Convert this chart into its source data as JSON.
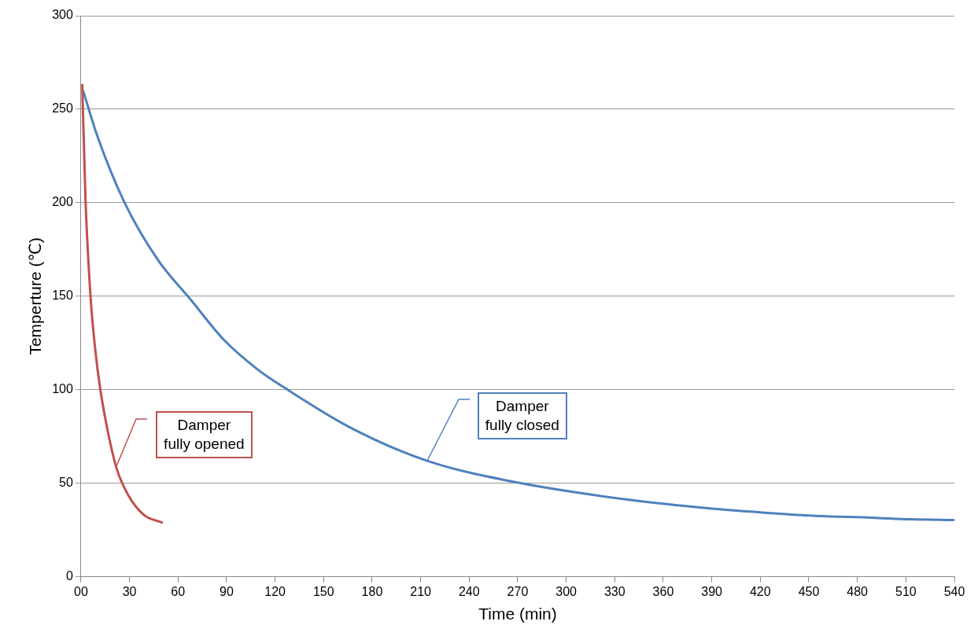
{
  "chart_data": {
    "type": "line",
    "xlabel": "Time (min)",
    "ylabel": "Temperture (℃)",
    "xlim": [
      0,
      540
    ],
    "xticks": [
      {
        "value": 0,
        "label": "00"
      },
      30,
      60,
      90,
      120,
      150,
      180,
      210,
      240,
      270,
      300,
      330,
      360,
      390,
      420,
      450,
      480,
      510,
      540
    ],
    "ylim": [
      0,
      300
    ],
    "yticks": [
      0,
      50,
      100,
      150,
      200,
      250,
      300
    ],
    "grid": "y",
    "series": [
      {
        "color": "#c0504d",
        "x": [
          0.8,
          2.8,
          5.9,
          8.9,
          12,
          17,
          22,
          29,
          39,
          50
        ],
        "values": [
          263,
          202,
          150,
          121,
          100,
          76,
          58,
          44,
          33,
          29
        ]
      },
      {
        "color": "#4f81bd",
        "x": [
          1.5,
          10,
          27,
          47.5,
          68,
          88,
          109,
          126,
          166,
          214,
          266,
          340,
          389,
          422,
          455,
          489,
          513,
          540
        ],
        "values": [
          259.5,
          236,
          200,
          169.5,
          148,
          127,
          111,
          101,
          80,
          62,
          51,
          41,
          36.5,
          34.3,
          32.5,
          31.6,
          30.7,
          30.3
        ]
      }
    ],
    "annotations": [
      {
        "text": "Damper\nfully opened",
        "x": 22,
        "y": 59
      },
      {
        "text": "Damper\nfully closed",
        "x": 214,
        "y": 62
      }
    ]
  }
}
